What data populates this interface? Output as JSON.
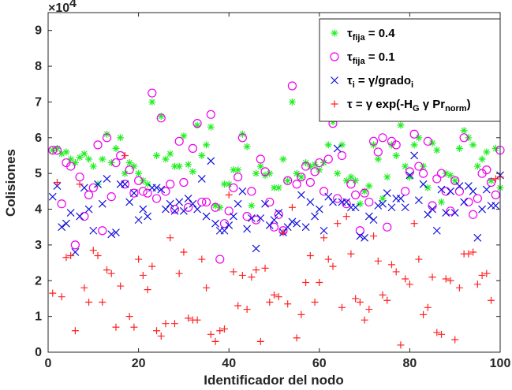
{
  "chart_data": {
    "type": "scatter",
    "title": "",
    "xlabel": "Identificador del nodo",
    "ylabel": "Colisiones",
    "exponent_label": "×10",
    "exponent_power": "4",
    "xlim": [
      0,
      100
    ],
    "ylim": [
      0,
      95000
    ],
    "xticks": [
      0,
      20,
      40,
      60,
      80,
      100
    ],
    "yticks": [
      0,
      10000,
      20000,
      30000,
      40000,
      50000,
      60000,
      70000,
      80000,
      90000
    ],
    "ytick_labels": [
      "0",
      "1",
      "2",
      "3",
      "4",
      "5",
      "6",
      "7",
      "8",
      "9"
    ],
    "grid": false,
    "legend_position": "top-right",
    "series": [
      {
        "name": "τfija = 0.4",
        "legend_parts": [
          "τ",
          "fija",
          " = 0.4"
        ],
        "marker": "asterisk",
        "color": "#22ee22",
        "x": [
          1,
          2,
          3,
          4,
          5,
          6,
          7,
          8,
          9,
          10,
          11,
          12,
          13,
          14,
          15,
          16,
          17,
          18,
          19,
          20,
          21,
          22,
          23,
          24,
          25,
          26,
          27,
          28,
          29,
          30,
          31,
          32,
          33,
          34,
          35,
          36,
          37,
          38,
          39,
          40,
          41,
          42,
          43,
          44,
          45,
          46,
          47,
          48,
          49,
          50,
          51,
          52,
          53,
          54,
          55,
          56,
          57,
          58,
          59,
          60,
          61,
          62,
          63,
          64,
          65,
          66,
          67,
          68,
          69,
          70,
          71,
          72,
          73,
          74,
          75,
          76,
          77,
          78,
          79,
          80,
          81,
          82,
          83,
          84,
          85,
          86,
          87,
          88,
          89,
          90,
          91,
          92,
          93,
          94,
          95,
          96,
          97,
          98,
          99,
          100
        ],
        "y": [
          56500,
          57000,
          55500,
          56000,
          54000,
          53000,
          54500,
          55500,
          54000,
          52000,
          47000,
          54000,
          61000,
          53000,
          57000,
          60000,
          50000,
          53000,
          52000,
          50000,
          48000,
          47000,
          70000,
          55000,
          66000,
          54000,
          55500,
          52000,
          52000,
          60500,
          52500,
          50500,
          63500,
          55000,
          58000,
          63000,
          41000,
          40500,
          47000,
          47000,
          51000,
          51000,
          61000,
          57500,
          41000,
          50000,
          52000,
          49500,
          50000,
          46000,
          46000,
          54000,
          48000,
          70000,
          50000,
          49000,
          53000,
          52000,
          52500,
          51000,
          53000,
          58000,
          64500,
          50000,
          58000,
          48000,
          49000,
          48000,
          41500,
          45000,
          46500,
          58000,
          54000,
          43000,
          49000,
          58000,
          55000,
          63500,
          52000,
          49000,
          58000,
          60000,
          52000,
          46000,
          58500,
          56500,
          42000,
          50000,
          49500,
          48000,
          57000,
          62000,
          60000,
          58000,
          52000,
          54000,
          56000,
          48000,
          57000,
          46000
        ]
      },
      {
        "name": "τfija = 0.1",
        "legend_parts": [
          "τ",
          "fija",
          " = 0.1"
        ],
        "marker": "circle",
        "color": "#ee00ee",
        "x": [
          1,
          2,
          3,
          4,
          5,
          6,
          7,
          8,
          9,
          10,
          11,
          12,
          13,
          14,
          15,
          16,
          17,
          18,
          19,
          20,
          21,
          22,
          23,
          24,
          25,
          26,
          27,
          28,
          29,
          30,
          31,
          32,
          33,
          34,
          35,
          36,
          37,
          38,
          39,
          40,
          41,
          42,
          43,
          44,
          45,
          46,
          47,
          48,
          49,
          50,
          51,
          52,
          53,
          54,
          55,
          56,
          57,
          58,
          59,
          60,
          61,
          62,
          63,
          64,
          65,
          66,
          67,
          68,
          69,
          70,
          71,
          72,
          73,
          74,
          75,
          76,
          77,
          78,
          79,
          80,
          81,
          82,
          83,
          84,
          85,
          86,
          87,
          88,
          89,
          90,
          91,
          92,
          93,
          94,
          95,
          96,
          97,
          98,
          99,
          100
        ],
        "y": [
          56500,
          56500,
          41500,
          53000,
          52000,
          30000,
          49000,
          38000,
          44000,
          46000,
          58000,
          34000,
          60000,
          43500,
          53000,
          55000,
          47000,
          51000,
          44500,
          48000,
          45000,
          44500,
          72500,
          43000,
          65500,
          45000,
          47000,
          40000,
          59000,
          47500,
          40500,
          57000,
          64000,
          42000,
          42000,
          66500,
          40500,
          26000,
          36000,
          39500,
          46000,
          49000,
          60000,
          38000,
          45000,
          37000,
          54000,
          50500,
          42000,
          35000,
          38500,
          34000,
          48000,
          74500,
          47000,
          49000,
          52000,
          47500,
          50500,
          53000,
          45000,
          54000,
          64000,
          43000,
          55000,
          41500,
          47000,
          44000,
          34000,
          44500,
          42000,
          59000,
          56000,
          60000,
          35000,
          59000,
          58000,
          66000,
          45000,
          50500,
          61000,
          52000,
          50000,
          59000,
          41000,
          48500,
          50000,
          45000,
          39500,
          48000,
          45000,
          60000,
          42000,
          38500,
          43000,
          50000,
          51000,
          47500,
          44000,
          56500
        ]
      },
      {
        "name": "τi = γ/gradoi",
        "legend_parts": [
          "τ",
          "i",
          " = γ/grado",
          "i"
        ],
        "marker": "x",
        "color": "#1111dd",
        "x": [
          1,
          2,
          3,
          4,
          5,
          6,
          7,
          8,
          9,
          10,
          11,
          12,
          13,
          14,
          15,
          16,
          17,
          18,
          19,
          20,
          21,
          22,
          23,
          24,
          25,
          26,
          27,
          28,
          29,
          30,
          31,
          32,
          33,
          34,
          35,
          36,
          37,
          38,
          39,
          40,
          41,
          42,
          43,
          44,
          45,
          46,
          47,
          48,
          49,
          50,
          51,
          52,
          53,
          54,
          55,
          56,
          57,
          58,
          59,
          60,
          61,
          62,
          63,
          64,
          65,
          66,
          67,
          68,
          69,
          70,
          71,
          72,
          73,
          74,
          75,
          76,
          77,
          78,
          79,
          80,
          81,
          82,
          83,
          84,
          85,
          86,
          87,
          88,
          89,
          90,
          91,
          92,
          93,
          94,
          95,
          96,
          97,
          98,
          99,
          100
        ],
        "y": [
          43500,
          46500,
          35000,
          36000,
          39000,
          28000,
          38000,
          46000,
          40000,
          34000,
          47000,
          41500,
          48500,
          33000,
          33500,
          47000,
          47000,
          42000,
          44500,
          37000,
          40000,
          38000,
          46000,
          46000,
          45500,
          40000,
          41500,
          39500,
          42000,
          39500,
          43000,
          41500,
          40000,
          48500,
          38000,
          53500,
          36000,
          34000,
          34000,
          35500,
          38000,
          41500,
          45000,
          34500,
          37500,
          29000,
          37500,
          41500,
          35500,
          37000,
          39000,
          33500,
          35000,
          36500,
          36000,
          44000,
          35000,
          42000,
          38000,
          40000,
          34000,
          43500,
          42000,
          57000,
          42000,
          42000,
          40500,
          40500,
          32500,
          32000,
          38000,
          37000,
          41000,
          41500,
          44500,
          40500,
          43000,
          43000,
          40500,
          49500,
          55000,
          42500,
          47000,
          38500,
          40000,
          34000,
          45500,
          39000,
          45000,
          39000,
          46500,
          42000,
          46500,
          45000,
          32000,
          40000,
          45500,
          41000,
          41000,
          49500
        ]
      },
      {
        "name": "τ = γ exp(-HG γ Prnorm)",
        "legend_parts": [
          "τ = γ exp(-H",
          "G",
          " γ Pr",
          "norm",
          ")"
        ],
        "marker": "plus",
        "color": "#ff2222",
        "x": [
          1,
          2,
          3,
          4,
          5,
          6,
          7,
          8,
          9,
          10,
          11,
          12,
          13,
          14,
          15,
          16,
          17,
          18,
          19,
          20,
          21,
          22,
          23,
          24,
          25,
          26,
          27,
          28,
          29,
          30,
          31,
          32,
          33,
          34,
          35,
          36,
          37,
          38,
          39,
          40,
          41,
          42,
          43,
          44,
          45,
          46,
          47,
          48,
          49,
          50,
          51,
          52,
          53,
          54,
          55,
          56,
          57,
          58,
          59,
          60,
          61,
          62,
          63,
          64,
          65,
          66,
          67,
          68,
          69,
          70,
          71,
          72,
          73,
          74,
          75,
          76,
          77,
          78,
          79,
          80,
          81,
          82,
          83,
          84,
          85,
          86,
          87,
          88,
          89,
          90,
          91,
          92,
          93,
          94,
          95,
          96,
          97,
          98,
          99,
          100
        ],
        "y": [
          16500,
          47500,
          15500,
          26500,
          27000,
          6000,
          47000,
          18000,
          14000,
          28500,
          27000,
          14000,
          23000,
          22000,
          7000,
          18500,
          55000,
          10000,
          7000,
          26000,
          21500,
          17500,
          24000,
          6000,
          4500,
          8000,
          32000,
          8000,
          22000,
          28000,
          9500,
          9000,
          9000,
          26000,
          18000,
          5000,
          3000,
          6000,
          6500,
          44000,
          22500,
          13000,
          21500,
          12000,
          21000,
          23000,
          3000,
          23500,
          14000,
          16000,
          15500,
          33500,
          13500,
          40500,
          4000,
          10500,
          19500,
          27000,
          14000,
          19500,
          32000,
          26000,
          24000,
          36000,
          12500,
          38000,
          27500,
          15000,
          14000,
          9000,
          12000,
          32500,
          25500,
          16000,
          14500,
          24500,
          22500,
          2000,
          20500,
          19000,
          36000,
          26000,
          10500,
          12500,
          21000,
          5500,
          5000,
          20500,
          20000,
          3500,
          18000,
          27500,
          27500,
          28000,
          19000,
          21500,
          22000,
          14500,
          48500,
          49000
        ]
      }
    ]
  }
}
